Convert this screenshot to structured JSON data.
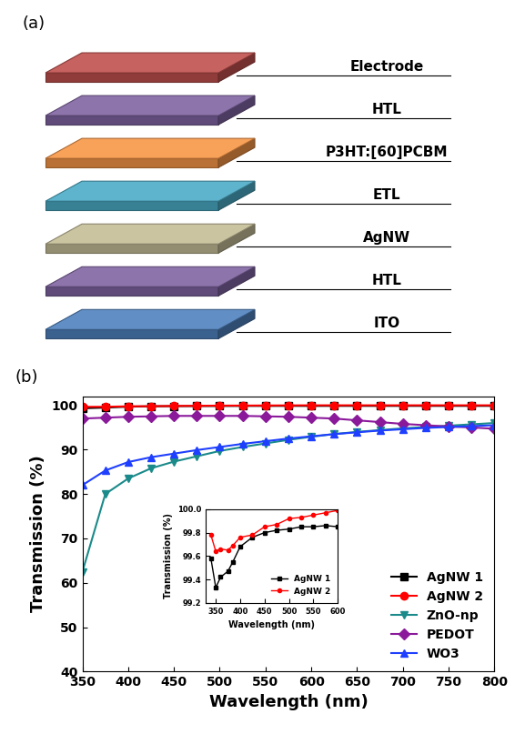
{
  "diagram": {
    "label": "(a)",
    "layers": [
      {
        "name": "Electrode",
        "color": "#c0504d"
      },
      {
        "name": "HTL",
        "color": "#8064a2"
      },
      {
        "name": "P3HT:[60]PCBM",
        "color": "#f79646"
      },
      {
        "name": "ETL",
        "color": "#4bacc6"
      },
      {
        "name": "AgNW",
        "color": "#c4bd97"
      },
      {
        "name": "HTL",
        "color": "#8064a2"
      },
      {
        "name": "ITO",
        "color": "#4f81bd"
      }
    ]
  },
  "chart_data": [
    {
      "type": "line",
      "annotations": [
        "(b)"
      ],
      "x_label": "Wavelength (nm)",
      "y_label": "Transmission (%)",
      "x": [
        350,
        375,
        400,
        425,
        450,
        475,
        500,
        525,
        550,
        575,
        600,
        625,
        650,
        675,
        700,
        725,
        750,
        775,
        800
      ],
      "xlim": [
        350,
        800
      ],
      "xticks": [
        350,
        400,
        450,
        500,
        550,
        600,
        650,
        700,
        750,
        800
      ],
      "ylim": [
        40,
        102
      ],
      "yticks": [
        40,
        50,
        60,
        70,
        80,
        90,
        100
      ],
      "legend": "lower right",
      "series": [
        {
          "name": "AgNW 1",
          "color": "#000000",
          "marker": "square",
          "values": [
            99.33,
            99.47,
            99.68,
            99.76,
            99.8,
            99.82,
            99.83,
            99.85,
            99.85,
            99.86,
            99.85,
            99.86,
            99.86,
            99.86,
            99.86,
            99.86,
            99.86,
            99.86,
            99.86
          ]
        },
        {
          "name": "AgNW 2",
          "color": "#ff0000",
          "marker": "circle",
          "values": [
            99.64,
            99.65,
            99.76,
            99.78,
            99.85,
            99.87,
            99.92,
            99.93,
            99.95,
            99.97,
            99.99,
            99.99,
            99.99,
            99.99,
            99.99,
            99.99,
            99.99,
            99.99,
            99.99
          ]
        },
        {
          "name": "ZnO-np",
          "color": "#1b8a8a",
          "marker": "triangle_down",
          "values": [
            62.5,
            80,
            83.5,
            85.8,
            87.3,
            88.5,
            89.7,
            90.6,
            91.4,
            92.2,
            92.9,
            93.5,
            94.0,
            94.4,
            94.8,
            95.1,
            95.4,
            95.7,
            96.0
          ]
        },
        {
          "name": "PEDOT",
          "color": "#8b1a9b",
          "marker": "diamond",
          "values": [
            97.0,
            97.2,
            97.4,
            97.5,
            97.6,
            97.6,
            97.6,
            97.6,
            97.5,
            97.4,
            97.2,
            97.0,
            96.6,
            96.2,
            95.8,
            95.5,
            95.2,
            95.0,
            94.7
          ]
        },
        {
          "name": "WO3",
          "color": "#1f3fff",
          "marker": "triangle_up",
          "values": [
            82.0,
            85.3,
            87.2,
            88.3,
            89.1,
            89.9,
            90.6,
            91.3,
            91.9,
            92.5,
            93.0,
            93.5,
            93.9,
            94.3,
            94.6,
            94.9,
            95.1,
            95.3,
            95.5
          ]
        }
      ]
    },
    {
      "type": "line",
      "x_label": "Wavelength (nm)",
      "y_label": "Transmission (%)",
      "x": [
        340,
        350,
        360,
        375,
        385,
        400,
        425,
        450,
        475,
        500,
        525,
        550,
        575,
        600
      ],
      "xlim": [
        330,
        600
      ],
      "xticks": [
        350,
        400,
        450,
        500,
        550,
        600
      ],
      "ylim": [
        99.2,
        100.0
      ],
      "yticks": [
        {
          "value": 99.2,
          "label": "99.2"
        },
        {
          "value": 99.4,
          "label": "99.4"
        },
        {
          "value": 99.6,
          "label": "99.6"
        },
        {
          "value": 99.8,
          "label": "99.8"
        },
        {
          "value": 100.0,
          "label": "100.0"
        }
      ],
      "legend": "lower right",
      "series": [
        {
          "name": "AgNW 1",
          "color": "#000000",
          "marker": "square",
          "values": [
            99.58,
            99.33,
            99.42,
            99.47,
            99.55,
            99.68,
            99.76,
            99.8,
            99.82,
            99.83,
            99.85,
            99.85,
            99.86,
            99.85
          ]
        },
        {
          "name": "AgNW 2",
          "color": "#ff0000",
          "marker": "circle",
          "values": [
            99.78,
            99.64,
            99.66,
            99.65,
            99.69,
            99.76,
            99.78,
            99.85,
            99.87,
            99.92,
            99.93,
            99.95,
            99.97,
            99.99
          ]
        }
      ]
    }
  ]
}
